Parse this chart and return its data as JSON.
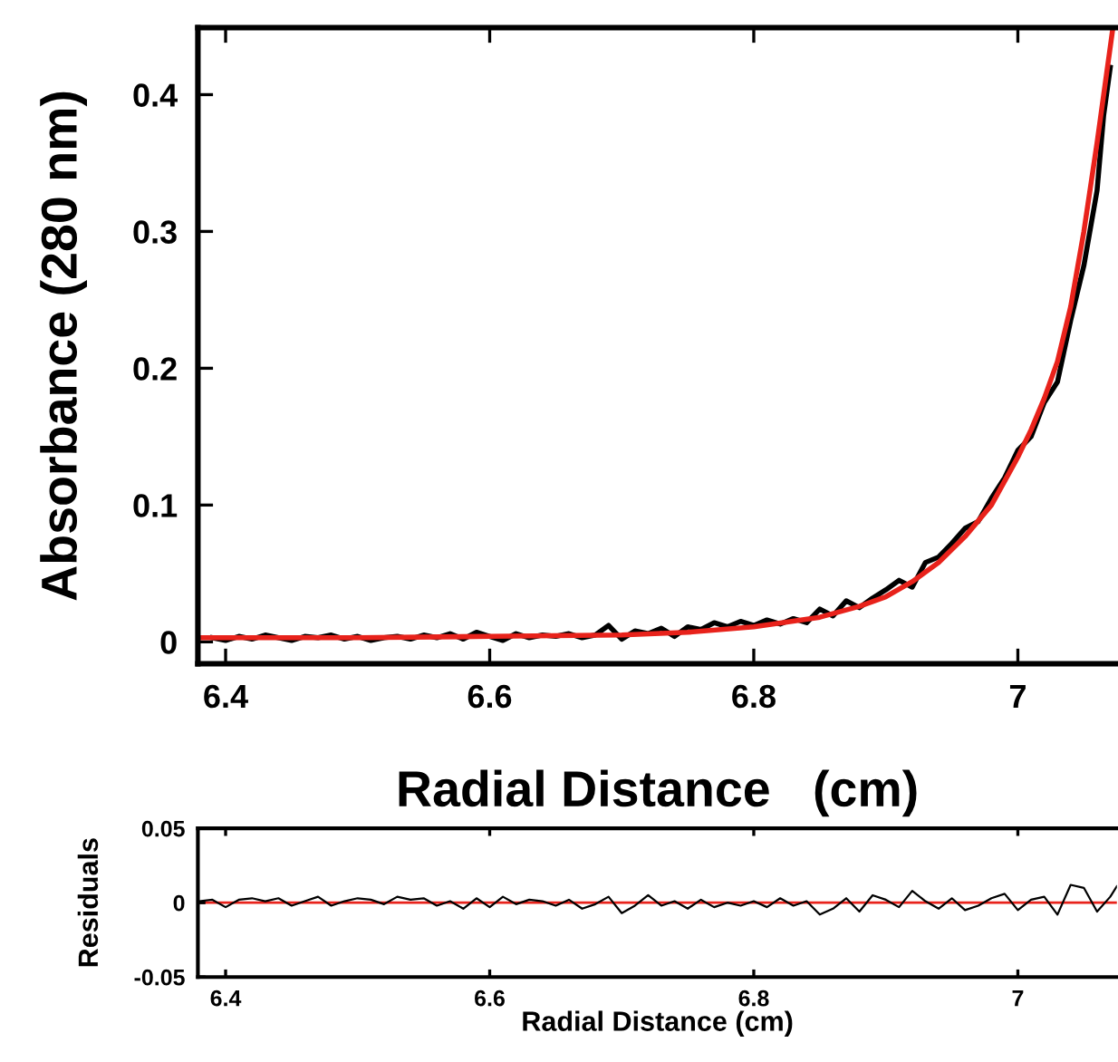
{
  "chart_data": [
    {
      "type": "line",
      "xlabel": "Radial Distance   (cm)",
      "ylabel": "Absorbance (280 nm)",
      "xlim": [
        6.379,
        7.075
      ],
      "ylim": [
        -0.016,
        0.449
      ],
      "xticks": [
        6.4,
        6.6,
        6.8,
        7
      ],
      "yticks": [
        0,
        0.1,
        0.2,
        0.3,
        0.4
      ],
      "grid": false,
      "legend": false,
      "marker": "none",
      "line_style": "solid",
      "series": [
        {
          "color": "#000000",
          "x": [
            6.39,
            6.4,
            6.41,
            6.42,
            6.43,
            6.44,
            6.45,
            6.46,
            6.47,
            6.48,
            6.49,
            6.5,
            6.51,
            6.52,
            6.53,
            6.54,
            6.55,
            6.56,
            6.57,
            6.58,
            6.59,
            6.6,
            6.61,
            6.62,
            6.63,
            6.64,
            6.65,
            6.66,
            6.67,
            6.68,
            6.69,
            6.7,
            6.71,
            6.72,
            6.73,
            6.74,
            6.75,
            6.76,
            6.77,
            6.78,
            6.79,
            6.8,
            6.81,
            6.82,
            6.83,
            6.84,
            6.85,
            6.86,
            6.87,
            6.88,
            6.89,
            6.9,
            6.91,
            6.92,
            6.93,
            6.94,
            6.95,
            6.96,
            6.97,
            6.98,
            6.99,
            7.0,
            7.01,
            7.02,
            7.03,
            7.04,
            7.05,
            7.06,
            7.065,
            7.07
          ],
          "values": [
            0.003,
            0.001,
            0.004,
            0.002,
            0.005,
            0.003,
            0.001,
            0.004,
            0.003,
            0.005,
            0.002,
            0.004,
            0.001,
            0.003,
            0.004,
            0.002,
            0.005,
            0.003,
            0.006,
            0.002,
            0.007,
            0.004,
            0.001,
            0.006,
            0.003,
            0.005,
            0.004,
            0.006,
            0.003,
            0.005,
            0.012,
            0.002,
            0.008,
            0.006,
            0.01,
            0.004,
            0.011,
            0.009,
            0.014,
            0.011,
            0.015,
            0.012,
            0.016,
            0.013,
            0.017,
            0.014,
            0.024,
            0.019,
            0.03,
            0.025,
            0.032,
            0.038,
            0.045,
            0.04,
            0.058,
            0.062,
            0.072,
            0.083,
            0.088,
            0.105,
            0.12,
            0.14,
            0.15,
            0.175,
            0.19,
            0.235,
            0.275,
            0.33,
            0.385,
            0.42
          ]
        },
        {
          "color": "#e8221b",
          "x": [
            6.38,
            6.5,
            6.6,
            6.7,
            6.75,
            6.8,
            6.85,
            6.88,
            6.9,
            6.92,
            6.94,
            6.96,
            6.98,
            7.0,
            7.01,
            7.02,
            7.03,
            7.04,
            7.05,
            7.06,
            7.072
          ],
          "values": [
            0.003,
            0.003,
            0.004,
            0.005,
            0.007,
            0.011,
            0.018,
            0.026,
            0.033,
            0.044,
            0.058,
            0.077,
            0.1,
            0.135,
            0.155,
            0.178,
            0.205,
            0.245,
            0.3,
            0.365,
            0.449
          ]
        }
      ]
    },
    {
      "type": "line",
      "xlabel": "Radial Distance (cm)",
      "ylabel": "Residuals",
      "xlim": [
        6.379,
        7.075
      ],
      "ylim": [
        -0.05,
        0.05
      ],
      "xticks": [
        6.4,
        6.6,
        6.8,
        7
      ],
      "yticks": [
        {
          "value": -0.05,
          "label": "-0.05"
        },
        0,
        0.05
      ],
      "grid": false,
      "legend": false,
      "marker": "none",
      "line_style": "solid",
      "ref_lines": [
        {
          "axis": "y",
          "value": 0,
          "color": "#e8221b"
        }
      ],
      "series": [
        {
          "color": "#000000",
          "x": [
            6.38,
            6.39,
            6.4,
            6.41,
            6.42,
            6.43,
            6.44,
            6.45,
            6.46,
            6.47,
            6.48,
            6.49,
            6.5,
            6.51,
            6.52,
            6.53,
            6.54,
            6.55,
            6.56,
            6.57,
            6.58,
            6.59,
            6.6,
            6.61,
            6.62,
            6.63,
            6.64,
            6.65,
            6.66,
            6.67,
            6.68,
            6.69,
            6.7,
            6.71,
            6.72,
            6.73,
            6.74,
            6.75,
            6.76,
            6.77,
            6.78,
            6.79,
            6.8,
            6.81,
            6.82,
            6.83,
            6.84,
            6.85,
            6.86,
            6.87,
            6.88,
            6.89,
            6.9,
            6.91,
            6.92,
            6.93,
            6.94,
            6.95,
            6.96,
            6.97,
            6.98,
            6.99,
            7.0,
            7.01,
            7.02,
            7.03,
            7.04,
            7.05,
            7.06,
            7.07,
            7.075
          ],
          "values": [
            0.001,
            0.002,
            -0.003,
            0.002,
            0.003,
            0.001,
            0.003,
            -0.002,
            0.001,
            0.004,
            -0.002,
            0.001,
            0.003,
            0.002,
            -0.001,
            0.004,
            0.002,
            0.003,
            -0.002,
            0.001,
            -0.004,
            0.003,
            -0.003,
            0.004,
            -0.001,
            0.002,
            0.001,
            -0.002,
            0.002,
            -0.004,
            -0.001,
            0.004,
            -0.007,
            -0.002,
            0.005,
            -0.002,
            0.001,
            -0.004,
            0.002,
            -0.003,
            0.0,
            -0.002,
            0.001,
            -0.003,
            0.003,
            -0.002,
            0.001,
            -0.008,
            -0.004,
            0.003,
            -0.006,
            0.005,
            0.002,
            -0.003,
            0.008,
            0.001,
            -0.004,
            0.003,
            -0.005,
            -0.002,
            0.003,
            0.006,
            -0.005,
            0.002,
            0.004,
            -0.008,
            0.012,
            0.01,
            -0.006,
            0.004,
            0.011
          ]
        }
      ]
    }
  ]
}
